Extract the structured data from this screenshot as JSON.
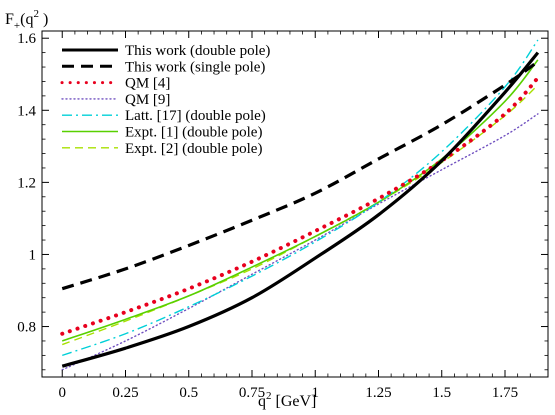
{
  "chart_data": {
    "type": "line",
    "ylabel": "F+ (q2 )",
    "ylabel_main": "F",
    "ylabel_sub": "+",
    "ylabel_paren": "(q",
    "ylabel_sup": "2",
    "ylabel_close": " )",
    "xlabel": "q2 [GeV]",
    "xlabel_main": "q",
    "xlabel_sup": "2",
    "xlabel_unit": " [GeV]",
    "xlim": [
      -0.08,
      1.92
    ],
    "ylim": [
      0.66,
      1.62
    ],
    "x_ticks": [
      "0",
      "0.25",
      "0.5",
      "0.75",
      "1",
      "1.25",
      "1.5",
      "1.75"
    ],
    "x_tick_values": [
      0,
      0.25,
      0.5,
      0.75,
      1,
      1.25,
      1.5,
      1.75
    ],
    "y_ticks": [
      "0.8",
      "1",
      "1.2",
      "1.4",
      "1.6"
    ],
    "y_tick_values": [
      0.8,
      1.0,
      1.2,
      1.4,
      1.6
    ],
    "grid": false,
    "legend_position": "top-left",
    "series": [
      {
        "name": "This work (double pole)",
        "color": "#000000",
        "style": "solid-thick",
        "x": [
          0,
          0.25,
          0.5,
          0.75,
          1.0,
          1.25,
          1.5,
          1.75,
          1.88
        ],
        "y": [
          0.69,
          0.74,
          0.8,
          0.88,
          0.99,
          1.11,
          1.26,
          1.45,
          1.56
        ]
      },
      {
        "name": "This work (single pole)",
        "color": "#000000",
        "style": "dashed-thick",
        "x": [
          0,
          0.25,
          0.5,
          0.75,
          1.0,
          1.25,
          1.5,
          1.75,
          1.88
        ],
        "y": [
          0.905,
          0.96,
          1.025,
          1.095,
          1.17,
          1.265,
          1.36,
          1.47,
          1.535
        ]
      },
      {
        "name": "QM [4]",
        "color": "#e8001e",
        "style": "dotted-thick",
        "x": [
          0,
          0.25,
          0.5,
          0.75,
          1.0,
          1.25,
          1.5,
          1.75,
          1.88
        ],
        "y": [
          0.78,
          0.84,
          0.905,
          0.98,
          1.065,
          1.155,
          1.26,
          1.39,
          1.49
        ]
      },
      {
        "name": "QM [9]",
        "color": "#7050c0",
        "style": "dotted-thin",
        "x": [
          0,
          0.25,
          0.5,
          0.75,
          1.0,
          1.25,
          1.5,
          1.75,
          1.88
        ],
        "y": [
          0.68,
          0.76,
          0.85,
          0.945,
          1.04,
          1.14,
          1.235,
          1.33,
          1.39
        ]
      },
      {
        "name": "Latt. [17] (double pole)",
        "color": "#00d0d8",
        "style": "dashdot",
        "x": [
          0,
          0.25,
          0.5,
          0.75,
          1.0,
          1.25,
          1.5,
          1.75,
          1.88
        ],
        "y": [
          0.72,
          0.78,
          0.855,
          0.94,
          1.035,
          1.145,
          1.285,
          1.465,
          1.595
        ]
      },
      {
        "name": "Expt. [1] (double pole)",
        "color": "#58d000",
        "style": "solid",
        "x": [
          0,
          0.25,
          0.5,
          0.75,
          1.0,
          1.25,
          1.5,
          1.75,
          1.88
        ],
        "y": [
          0.76,
          0.82,
          0.885,
          0.965,
          1.05,
          1.145,
          1.265,
          1.425,
          1.54
        ]
      },
      {
        "name": "Expt. [2] (double pole)",
        "color": "#a8e000",
        "style": "dashed",
        "x": [
          0,
          0.25,
          0.5,
          0.75,
          1.0,
          1.25,
          1.5,
          1.75,
          1.88
        ],
        "y": [
          0.75,
          0.815,
          0.885,
          0.96,
          1.05,
          1.145,
          1.255,
          1.385,
          1.47
        ]
      }
    ]
  }
}
